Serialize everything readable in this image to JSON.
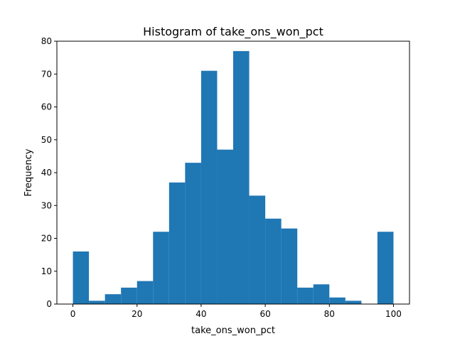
{
  "chart_data": {
    "type": "bar",
    "title": "Histogram of take_ons_won_pct",
    "xlabel": "take_ons_won_pct",
    "ylabel": "Frequency",
    "xlim": [
      -5,
      105
    ],
    "ylim": [
      0,
      80
    ],
    "bin_width": 5,
    "bins": [
      {
        "start": 0,
        "end": 5,
        "count": 16
      },
      {
        "start": 5,
        "end": 10,
        "count": 1
      },
      {
        "start": 10,
        "end": 15,
        "count": 3
      },
      {
        "start": 15,
        "end": 20,
        "count": 5
      },
      {
        "start": 20,
        "end": 25,
        "count": 7
      },
      {
        "start": 25,
        "end": 30,
        "count": 22
      },
      {
        "start": 30,
        "end": 35,
        "count": 37
      },
      {
        "start": 35,
        "end": 40,
        "count": 43
      },
      {
        "start": 40,
        "end": 45,
        "count": 71
      },
      {
        "start": 45,
        "end": 50,
        "count": 47
      },
      {
        "start": 50,
        "end": 55,
        "count": 77
      },
      {
        "start": 55,
        "end": 60,
        "count": 33
      },
      {
        "start": 60,
        "end": 65,
        "count": 26
      },
      {
        "start": 65,
        "end": 70,
        "count": 23
      },
      {
        "start": 70,
        "end": 75,
        "count": 5
      },
      {
        "start": 75,
        "end": 80,
        "count": 6
      },
      {
        "start": 80,
        "end": 85,
        "count": 2
      },
      {
        "start": 85,
        "end": 90,
        "count": 1
      },
      {
        "start": 90,
        "end": 95,
        "count": 0
      },
      {
        "start": 95,
        "end": 100,
        "count": 22
      }
    ],
    "x_ticks": [
      0,
      20,
      40,
      60,
      80,
      100
    ],
    "y_ticks": [
      0,
      10,
      20,
      30,
      40,
      50,
      60,
      70,
      80
    ],
    "grid": false,
    "colors": {
      "bar": "#1f77b4",
      "axis": "#000000"
    }
  }
}
